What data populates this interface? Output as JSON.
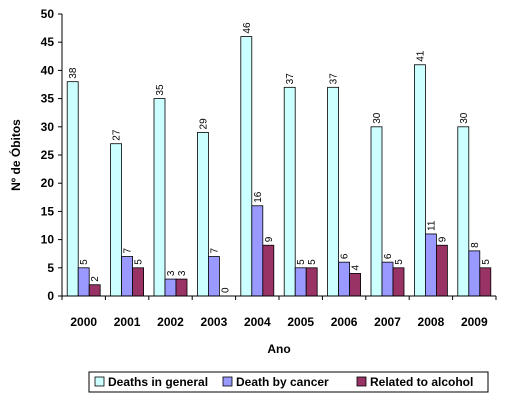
{
  "chart_data": {
    "type": "bar",
    "categories": [
      "2000",
      "2001",
      "2002",
      "2003",
      "2004",
      "2005",
      "2006",
      "2007",
      "2008",
      "2009"
    ],
    "series": [
      {
        "name": "Deaths in general",
        "values": [
          38,
          27,
          35,
          29,
          46,
          37,
          37,
          30,
          41,
          30
        ],
        "color": "#ccffff"
      },
      {
        "name": "Death by cancer",
        "values": [
          5,
          7,
          3,
          7,
          16,
          5,
          6,
          6,
          11,
          8
        ],
        "color": "#9999ff"
      },
      {
        "name": "Related to alcohol",
        "values": [
          2,
          5,
          3,
          0,
          9,
          5,
          4,
          5,
          9,
          5
        ],
        "color": "#993366"
      }
    ],
    "xlabel": "Ano",
    "ylabel": "Nº de Óbitos",
    "ylim": [
      0,
      50
    ],
    "yticks": [
      0,
      5,
      10,
      15,
      20,
      25,
      30,
      35,
      40,
      45,
      50
    ],
    "grid": false,
    "legend_position": "bottom",
    "data_labels": true
  }
}
